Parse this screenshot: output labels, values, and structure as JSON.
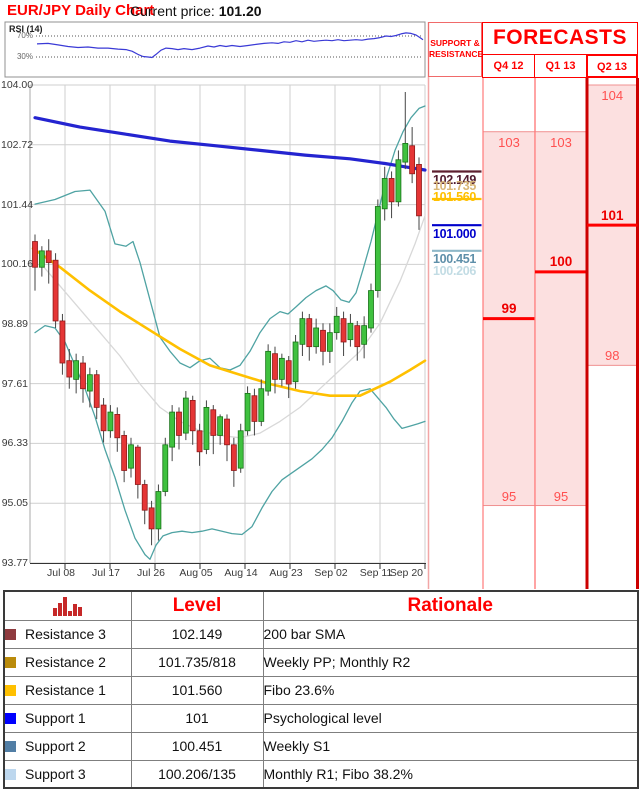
{
  "header": {
    "title": "EUR/JPY Daily Chart",
    "current_price_label": "Current price:",
    "current_price_value": "101.20"
  },
  "rsi": {
    "label": "RSI (14)",
    "upper_label": "70%",
    "lower_label": "30%",
    "upper_value": 70,
    "lower_value": 30,
    "series": [
      [
        37,
        55
      ],
      [
        48,
        56
      ],
      [
        58,
        53
      ],
      [
        68,
        50
      ],
      [
        78,
        48
      ],
      [
        88,
        49
      ],
      [
        98,
        47
      ],
      [
        108,
        47
      ],
      [
        118,
        45
      ],
      [
        126,
        44
      ],
      [
        132,
        41
      ],
      [
        138,
        35
      ],
      [
        143,
        31
      ],
      [
        148,
        30
      ],
      [
        152,
        29
      ],
      [
        156,
        35
      ],
      [
        161,
        43
      ],
      [
        166,
        47
      ],
      [
        172,
        46
      ],
      [
        178,
        44
      ],
      [
        184,
        46
      ],
      [
        192,
        44
      ],
      [
        200,
        47
      ],
      [
        208,
        51
      ],
      [
        214,
        49
      ],
      [
        220,
        52
      ],
      [
        226,
        50
      ],
      [
        232,
        52
      ],
      [
        240,
        50
      ],
      [
        248,
        52
      ],
      [
        256,
        54
      ],
      [
        264,
        56
      ],
      [
        272,
        57
      ],
      [
        278,
        56
      ],
      [
        284,
        59
      ],
      [
        290,
        58
      ],
      [
        296,
        61
      ],
      [
        302,
        59
      ],
      [
        308,
        62
      ],
      [
        314,
        60
      ],
      [
        320,
        61
      ],
      [
        326,
        62
      ],
      [
        332,
        61
      ],
      [
        338,
        63
      ],
      [
        344,
        61
      ],
      [
        350,
        62
      ],
      [
        356,
        63
      ],
      [
        362,
        62
      ],
      [
        368,
        64
      ],
      [
        374,
        65
      ],
      [
        380,
        67
      ],
      [
        386,
        70
      ],
      [
        391,
        69
      ],
      [
        396,
        71
      ],
      [
        401,
        74
      ],
      [
        406,
        76
      ],
      [
        411,
        75
      ],
      [
        416,
        72
      ],
      [
        420,
        67
      ],
      [
        423,
        63
      ]
    ]
  },
  "chart_data": {
    "type": "candlestick",
    "title": "EUR/JPY Daily Chart",
    "ylim": [
      93.77,
      104.0
    ],
    "y_ticks": [
      "104.00",
      "102.72",
      "101.44",
      "100.16",
      "98.89",
      "97.61",
      "96.33",
      "95.05",
      "93.77"
    ],
    "y_tick_values": [
      104.0,
      102.72,
      101.44,
      100.16,
      98.89,
      97.61,
      96.33,
      95.05,
      93.77
    ],
    "x_ticks": [
      "Jul 08",
      "Jul 17",
      "Jul 26",
      "Aug 05",
      "Aug 14",
      "Aug 23",
      "Sep 02",
      "Sep 11",
      "Sep 20"
    ],
    "grid": true,
    "candles_ohlc": [
      [
        100.65,
        100.8,
        99.6,
        100.1
      ],
      [
        100.1,
        100.55,
        99.9,
        100.45
      ],
      [
        100.45,
        100.7,
        99.75,
        100.2
      ],
      [
        100.25,
        100.4,
        98.8,
        98.95
      ],
      [
        98.95,
        99.1,
        97.8,
        98.05
      ],
      [
        98.1,
        98.35,
        97.5,
        97.75
      ],
      [
        97.7,
        98.25,
        97.4,
        98.1
      ],
      [
        98.05,
        98.2,
        97.2,
        97.5
      ],
      [
        97.45,
        97.95,
        97.1,
        97.8
      ],
      [
        97.8,
        97.9,
        96.85,
        97.1
      ],
      [
        97.15,
        97.3,
        96.35,
        96.6
      ],
      [
        96.6,
        97.15,
        96.45,
        97.0
      ],
      [
        96.95,
        97.1,
        96.15,
        96.45
      ],
      [
        96.5,
        96.6,
        95.5,
        95.75
      ],
      [
        95.8,
        96.45,
        95.6,
        96.3
      ],
      [
        96.25,
        96.3,
        95.15,
        95.45
      ],
      [
        95.45,
        95.55,
        94.6,
        94.9
      ],
      [
        94.95,
        95.1,
        94.15,
        94.5
      ],
      [
        94.5,
        95.45,
        94.25,
        95.3
      ],
      [
        95.3,
        96.45,
        95.2,
        96.3
      ],
      [
        96.25,
        97.15,
        95.95,
        97.0
      ],
      [
        97.0,
        97.1,
        96.2,
        96.5
      ],
      [
        96.55,
        97.45,
        96.4,
        97.3
      ],
      [
        97.25,
        97.35,
        96.3,
        96.6
      ],
      [
        96.6,
        96.75,
        95.85,
        96.15
      ],
      [
        96.2,
        97.25,
        96.1,
        97.1
      ],
      [
        97.05,
        97.15,
        96.1,
        96.5
      ],
      [
        96.5,
        96.95,
        96.3,
        96.9
      ],
      [
        96.85,
        96.95,
        95.95,
        96.3
      ],
      [
        96.3,
        96.45,
        95.4,
        95.75
      ],
      [
        95.8,
        96.75,
        95.7,
        96.6
      ],
      [
        96.6,
        97.55,
        96.5,
        97.4
      ],
      [
        97.35,
        97.5,
        96.5,
        96.8
      ],
      [
        96.8,
        97.7,
        96.7,
        97.5
      ],
      [
        97.45,
        98.45,
        97.35,
        98.3
      ],
      [
        98.25,
        98.4,
        97.4,
        97.7
      ],
      [
        97.7,
        98.25,
        97.55,
        98.15
      ],
      [
        98.1,
        98.2,
        97.3,
        97.6
      ],
      [
        97.65,
        98.65,
        97.5,
        98.5
      ],
      [
        98.45,
        99.15,
        98.2,
        99.0
      ],
      [
        99.0,
        99.1,
        98.1,
        98.4
      ],
      [
        98.4,
        99.0,
        98.25,
        98.8
      ],
      [
        98.75,
        98.9,
        98.0,
        98.3
      ],
      [
        98.3,
        98.9,
        98.05,
        98.7
      ],
      [
        98.7,
        99.25,
        98.55,
        99.05
      ],
      [
        99.0,
        99.15,
        98.2,
        98.5
      ],
      [
        98.55,
        99.1,
        98.4,
        98.9
      ],
      [
        98.85,
        98.95,
        98.1,
        98.4
      ],
      [
        98.45,
        99.05,
        98.15,
        98.85
      ],
      [
        98.8,
        99.75,
        98.7,
        99.6
      ],
      [
        99.6,
        101.55,
        99.45,
        101.4
      ],
      [
        101.35,
        102.25,
        101.1,
        102.0
      ],
      [
        102.0,
        102.15,
        101.15,
        101.5
      ],
      [
        101.5,
        102.6,
        101.4,
        102.4
      ],
      [
        102.35,
        103.85,
        102.2,
        102.75
      ],
      [
        102.7,
        103.1,
        101.9,
        102.1
      ],
      [
        102.3,
        102.45,
        100.9,
        101.2
      ]
    ],
    "overlays": {
      "sma200_blue": [
        [
          35,
          103.3
        ],
        [
          80,
          103.1
        ],
        [
          125,
          102.95
        ],
        [
          170,
          102.8
        ],
        [
          215,
          102.7
        ],
        [
          260,
          102.6
        ],
        [
          305,
          102.5
        ],
        [
          350,
          102.42
        ],
        [
          385,
          102.32
        ],
        [
          405,
          102.25
        ],
        [
          425,
          102.18
        ]
      ],
      "sma_yellow": [
        [
          33,
          100.5
        ],
        [
          60,
          100.1
        ],
        [
          90,
          99.6
        ],
        [
          120,
          99.15
        ],
        [
          150,
          98.75
        ],
        [
          180,
          98.35
        ],
        [
          210,
          98.0
        ],
        [
          240,
          97.8
        ],
        [
          270,
          97.6
        ],
        [
          300,
          97.45
        ],
        [
          330,
          97.35
        ],
        [
          360,
          97.35
        ],
        [
          390,
          97.65
        ],
        [
          410,
          97.9
        ],
        [
          425,
          98.1
        ]
      ],
      "sma_gray": [
        [
          40,
          100.2
        ],
        [
          60,
          99.7
        ],
        [
          80,
          99.2
        ],
        [
          100,
          98.7
        ],
        [
          120,
          98.2
        ],
        [
          140,
          97.6
        ],
        [
          160,
          97.1
        ],
        [
          180,
          96.8
        ],
        [
          200,
          96.6
        ],
        [
          220,
          96.5
        ],
        [
          240,
          96.45
        ],
        [
          260,
          96.55
        ],
        [
          280,
          96.8
        ],
        [
          300,
          97.1
        ],
        [
          320,
          97.5
        ],
        [
          340,
          97.9
        ],
        [
          360,
          98.3
        ],
        [
          380,
          98.9
        ],
        [
          400,
          99.8
        ],
        [
          415,
          100.6
        ],
        [
          425,
          101.2
        ]
      ],
      "bb_upper": [
        [
          35,
          101.45
        ],
        [
          55,
          101.55
        ],
        [
          75,
          101.72
        ],
        [
          90,
          101.75
        ],
        [
          105,
          101.3
        ],
        [
          115,
          100.6
        ],
        [
          126,
          100.55
        ],
        [
          133,
          100.65
        ],
        [
          140,
          100.2
        ],
        [
          150,
          99.4
        ],
        [
          160,
          98.6
        ],
        [
          170,
          98.3
        ],
        [
          180,
          98.05
        ],
        [
          190,
          97.95
        ],
        [
          200,
          98.1
        ],
        [
          210,
          98.15
        ],
        [
          220,
          97.95
        ],
        [
          230,
          97.9
        ],
        [
          240,
          98.0
        ],
        [
          250,
          98.3
        ],
        [
          260,
          98.7
        ],
        [
          270,
          99.0
        ],
        [
          280,
          99.15
        ],
        [
          288,
          99.1
        ],
        [
          296,
          99.25
        ],
        [
          306,
          99.45
        ],
        [
          316,
          99.6
        ],
        [
          326,
          99.7
        ],
        [
          333,
          99.6
        ],
        [
          341,
          99.4
        ],
        [
          349,
          99.35
        ],
        [
          356,
          99.55
        ],
        [
          363,
          100.05
        ],
        [
          371,
          100.65
        ],
        [
          379,
          101.35
        ],
        [
          387,
          102.05
        ],
        [
          395,
          102.6
        ],
        [
          403,
          103.0
        ],
        [
          411,
          103.3
        ],
        [
          419,
          103.5
        ],
        [
          425,
          103.55
        ]
      ],
      "bb_lower": [
        [
          35,
          98.7
        ],
        [
          45,
          98.85
        ],
        [
          55,
          98.8
        ],
        [
          65,
          98.5
        ],
        [
          75,
          98.0
        ],
        [
          85,
          97.5
        ],
        [
          95,
          96.9
        ],
        [
          105,
          96.2
        ],
        [
          115,
          95.6
        ],
        [
          125,
          94.9
        ],
        [
          135,
          94.3
        ],
        [
          145,
          93.95
        ],
        [
          150,
          93.85
        ],
        [
          156,
          94.15
        ],
        [
          163,
          94.35
        ],
        [
          172,
          94.42
        ],
        [
          182,
          94.45
        ],
        [
          192,
          94.42
        ],
        [
          202,
          94.45
        ],
        [
          212,
          94.5
        ],
        [
          222,
          94.45
        ],
        [
          232,
          94.4
        ],
        [
          242,
          94.38
        ],
        [
          252,
          94.55
        ],
        [
          262,
          94.95
        ],
        [
          272,
          95.3
        ],
        [
          282,
          95.55
        ],
        [
          292,
          95.7
        ],
        [
          302,
          95.85
        ],
        [
          312,
          96.0
        ],
        [
          322,
          96.2
        ],
        [
          332,
          96.45
        ],
        [
          342,
          96.8
        ],
        [
          352,
          97.2
        ],
        [
          360,
          97.45
        ],
        [
          370,
          97.5
        ],
        [
          378,
          97.3
        ],
        [
          386,
          97.1
        ],
        [
          394,
          96.85
        ],
        [
          402,
          96.65
        ],
        [
          410,
          96.7
        ],
        [
          418,
          96.75
        ],
        [
          425,
          96.8
        ]
      ]
    }
  },
  "sr_panel": {
    "header_line1": "SUPPORT &",
    "header_line2": "RESISTANCE",
    "levels": [
      {
        "label": "102.149",
        "price": 102.149,
        "color": "#4f1a2e",
        "line": true,
        "line_color": "#5e2030",
        "dy": 2
      },
      {
        "label": "101.735",
        "price": 101.735,
        "color": "#d9b778",
        "line": false,
        "line_color": "#d9b778",
        "dy": -11.5
      },
      {
        "label": "101.560",
        "price": 101.56,
        "color": "#ffc000",
        "line": true,
        "line_color": "#ffc000",
        "dy": -9
      },
      {
        "label": "101.000",
        "price": 101.0,
        "color": "#0000cc",
        "line": true,
        "line_color": "#0000cc",
        "dy": 2
      },
      {
        "label": "100.451",
        "price": 100.451,
        "color": "#5e8fa9",
        "line": true,
        "line_color": "#8fb8c8",
        "dy": 1.5
      },
      {
        "label": "100.206",
        "price": 100.206,
        "color": "#c2dce4",
        "line": false,
        "line_color": "#c2dce4",
        "dy": 2
      }
    ]
  },
  "forecasts": {
    "title": "FORECASTS",
    "columns": [
      {
        "label": "Q4 12",
        "high": 103,
        "low": 95,
        "forecast": 99,
        "highlight": false
      },
      {
        "label": "Q1 13",
        "high": 103,
        "low": 95,
        "forecast": 100,
        "highlight": false
      },
      {
        "label": "Q2 13",
        "high": 104,
        "low": 98,
        "forecast": 101,
        "highlight": true
      }
    ]
  },
  "table": {
    "icon": "bar-chart-icon",
    "level_header": "Level",
    "rationale_header": "Rationale",
    "rows": [
      {
        "name": "Resistance 3",
        "level": "102.149",
        "rationale": "200 bar SMA",
        "swatch": "#8e3a3e"
      },
      {
        "name": "Resistance 2",
        "level": "101.735/818",
        "rationale": "Weekly PP; Monthly R2",
        "swatch": "#ba8b0b"
      },
      {
        "name": "Resistance 1",
        "level": "101.560",
        "rationale": "Fibo 23.6%",
        "swatch": "#ffc000"
      },
      {
        "name": "Support 1",
        "level": "101",
        "rationale": "Psychological level",
        "swatch": "#0000ff"
      },
      {
        "name": "Support 2",
        "level": "100.451",
        "rationale": "Weekly S1",
        "swatch": "#517ea5"
      },
      {
        "name": "Support 3",
        "level": "100.206/135",
        "rationale": "Monthly R1; Fibo 38.2%",
        "swatch": "#bdd7ee"
      }
    ]
  },
  "colors": {
    "accent_red": "#ff0000",
    "forecast_fill": "#fce0e0",
    "forecast_border": "#f09090",
    "forecast_line": "#ff0000",
    "highlight_border": "#cc0000",
    "candle_up_fill": "#3fc13f",
    "candle_up_stroke": "#187218",
    "candle_down_fill": "#e53535",
    "candle_down_stroke": "#8f1a1a",
    "wick": "#444444",
    "sma200": "#2424d0",
    "sma_yellow": "#ffc000",
    "sma_gray": "#d8d8d8",
    "bollinger": "#4fa3a3",
    "rsi_line": "#3a3ad6",
    "grid": "#cfcfcf",
    "axis": "#333333"
  }
}
